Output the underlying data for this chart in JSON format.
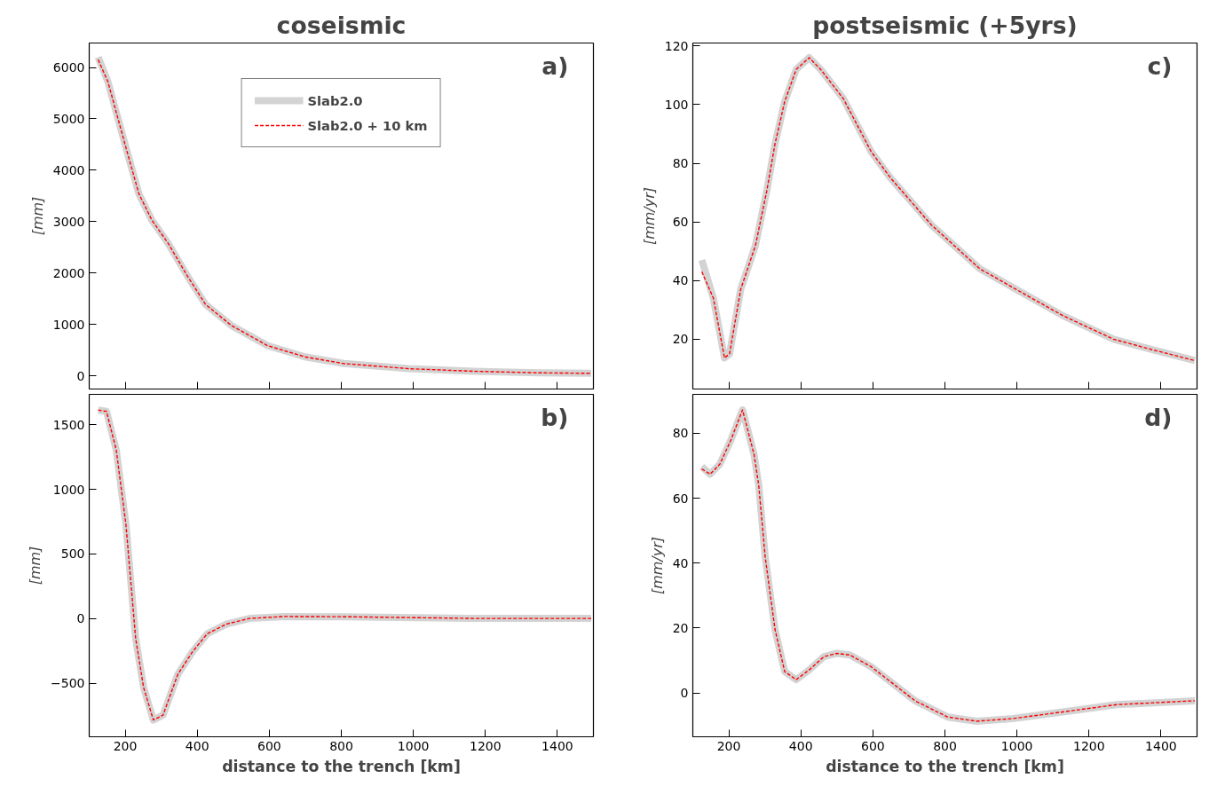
{
  "chart_data": [
    {
      "type": "line",
      "title": "coseismic",
      "ylabel": "[mm]",
      "annotations": [
        "a)"
      ],
      "legend": "top",
      "tick_labels": "y",
      "grid": false,
      "x": [
        125,
        152,
        202,
        238,
        274,
        319,
        373,
        423,
        495,
        595,
        699,
        807,
        988,
        1168,
        1349,
        1494
      ],
      "xlim": [
        100,
        1500
      ],
      "xticks": [
        200,
        400,
        600,
        800,
        1000,
        1200,
        1400
      ],
      "ylim": [
        -255,
        6475
      ],
      "yticks": [
        0,
        1000,
        2000,
        3000,
        4000,
        5000,
        6000
      ],
      "series": [
        {
          "name": "Slab2.0",
          "color": "#d3d3d3",
          "line_style": "solid",
          "values": [
            6200,
            5720,
            4440,
            3540,
            3030,
            2580,
            1940,
            1390,
            980,
            590,
            370,
            240,
            140,
            90,
            60,
            50
          ]
        },
        {
          "name": "Slab2.0 + 10 km",
          "color": "#ff0000",
          "line_style": "dashed",
          "values": [
            6150,
            5720,
            4440,
            3540,
            3030,
            2580,
            1940,
            1390,
            980,
            590,
            370,
            240,
            140,
            90,
            60,
            50
          ]
        }
      ]
    },
    {
      "type": "line",
      "title": "postseismic (+5yrs)",
      "ylabel": "[mm/yr]",
      "annotations": [
        "c)"
      ],
      "tick_labels": "y",
      "grid": false,
      "x": [
        125,
        157,
        188,
        202,
        233,
        274,
        306,
        328,
        355,
        387,
        423,
        455,
        518,
        595,
        649,
        762,
        897,
        1019,
        1128,
        1268,
        1376,
        1494
      ],
      "xlim": [
        100,
        1500
      ],
      "xticks": [
        200,
        400,
        600,
        800,
        1000,
        1200,
        1400
      ],
      "ylim": [
        3,
        121
      ],
      "yticks": [
        20,
        40,
        60,
        80,
        100,
        120
      ],
      "series": [
        {
          "color": "#d3d3d3",
          "line_style": "solid",
          "values": [
            47,
            34,
            13.6,
            15,
            37,
            52,
            71,
            86.5,
            101,
            112,
            116,
            112,
            102,
            84,
            75,
            59,
            44,
            35.5,
            28,
            20,
            16.4,
            12.7
          ]
        },
        {
          "color": "#ff0000",
          "line_style": "dashed",
          "values": [
            43,
            34,
            13.6,
            15,
            37,
            52,
            71,
            86.5,
            101,
            112,
            116,
            112,
            102,
            84,
            75,
            59,
            44,
            35.5,
            28,
            20,
            16.4,
            12.7
          ]
        }
      ]
    },
    {
      "type": "line",
      "xlabel": "distance to the trench [km]",
      "ylabel": "[mm]",
      "annotations": [
        "b)"
      ],
      "grid": false,
      "x": [
        125,
        148,
        175,
        202,
        229,
        251,
        278,
        305,
        346,
        387,
        428,
        482,
        545,
        644,
        807,
        1168,
        1494
      ],
      "xlim": [
        100,
        1500
      ],
      "xticks": [
        200,
        400,
        600,
        800,
        1000,
        1200,
        1400
      ],
      "ylim": [
        -915,
        1735
      ],
      "yticks": [
        -500,
        0,
        500,
        1000,
        1500
      ],
      "series": [
        {
          "color": "#d3d3d3",
          "line_style": "solid",
          "values": [
            1613,
            1603,
            1306,
            727,
            -155,
            -533,
            -785,
            -747,
            -432,
            -256,
            -117,
            -42,
            1,
            16,
            14,
            1,
            1
          ]
        },
        {
          "color": "#ff0000",
          "line_style": "dashed",
          "values": [
            1613,
            1603,
            1306,
            727,
            -155,
            -533,
            -785,
            -747,
            -432,
            -256,
            -117,
            -42,
            1,
            16,
            14,
            1,
            1
          ]
        }
      ]
    },
    {
      "type": "line",
      "xlabel": "distance to the trench [km]",
      "ylabel": "[mm/yr]",
      "annotations": [
        "d)"
      ],
      "grid": false,
      "x": [
        125,
        148,
        175,
        206,
        238,
        270,
        283,
        301,
        328,
        355,
        387,
        423,
        464,
        500,
        536,
        595,
        717,
        807,
        888,
        988,
        1123,
        1277,
        1494
      ],
      "xlim": [
        100,
        1500
      ],
      "xticks": [
        200,
        400,
        600,
        800,
        1000,
        1200,
        1400
      ],
      "ylim": [
        -13.5,
        92
      ],
      "yticks": [
        0,
        20,
        40,
        60,
        80
      ],
      "series": [
        {
          "color": "#d3d3d3",
          "line_style": "solid",
          "values": [
            69.7,
            67.4,
            70.5,
            78,
            87.2,
            73.5,
            64,
            41.8,
            19.7,
            6.6,
            4.1,
            7.1,
            11.2,
            12.2,
            11.7,
            8.1,
            -2.4,
            -7.4,
            -8.7,
            -7.9,
            -5.9,
            -3.6,
            -2.4
          ]
        },
        {
          "color": "#ff0000",
          "line_style": "dashed",
          "values": [
            69.0,
            67.4,
            70.5,
            78,
            87.2,
            73.5,
            64,
            41.8,
            19.7,
            6.6,
            4.1,
            7.1,
            11.2,
            12.2,
            11.7,
            8.1,
            -2.4,
            -7.4,
            -8.7,
            -7.9,
            -5.9,
            -3.6,
            -2.4
          ]
        }
      ]
    }
  ]
}
